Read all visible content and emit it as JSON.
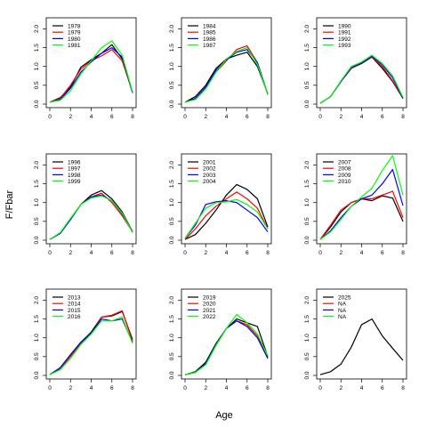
{
  "chart_data": {
    "type": "line",
    "ylabel": "F/Fbar",
    "xlabel": "Age",
    "x": [
      0,
      1,
      2,
      3,
      4,
      5,
      6,
      7,
      8
    ],
    "xticks": [
      0,
      2,
      4,
      6,
      8
    ],
    "yticks": [
      0.0,
      0.5,
      1.0,
      1.5,
      2.0
    ],
    "ylim": [
      0,
      2.2
    ],
    "xlim": [
      0,
      8
    ],
    "colors": [
      "#000000",
      "#ff0000",
      "#0000ff",
      "#00ff00"
    ],
    "legend_position": "top-left",
    "panels": [
      {
        "series": [
          {
            "name": "1978",
            "color": "#000000",
            "values": [
              0.05,
              0.17,
              0.45,
              0.98,
              1.18,
              1.35,
              1.58,
              1.2,
              0.3
            ]
          },
          {
            "name": "1979",
            "color": "#ff0000",
            "values": [
              0.05,
              0.15,
              0.5,
              0.93,
              1.15,
              1.28,
              1.45,
              1.15,
              0.32
            ]
          },
          {
            "name": "1980",
            "color": "#0000ff",
            "values": [
              0.05,
              0.12,
              0.42,
              0.85,
              1.12,
              1.35,
              1.5,
              1.25,
              0.3
            ]
          },
          {
            "name": "1981",
            "color": "#00ff00",
            "values": [
              0.05,
              0.1,
              0.35,
              0.8,
              1.15,
              1.5,
              1.68,
              1.3,
              0.32
            ]
          }
        ]
      },
      {
        "series": [
          {
            "name": "1984",
            "color": "#000000",
            "values": [
              0.05,
              0.2,
              0.5,
              0.95,
              1.2,
              1.3,
              1.38,
              1.0,
              0.28
            ]
          },
          {
            "name": "1985",
            "color": "#ff0000",
            "values": [
              0.05,
              0.15,
              0.45,
              0.85,
              1.15,
              1.45,
              1.55,
              1.1,
              0.25
            ]
          },
          {
            "name": "1986",
            "color": "#0000ff",
            "values": [
              0.05,
              0.15,
              0.45,
              0.9,
              1.18,
              1.38,
              1.45,
              1.1,
              0.27
            ]
          },
          {
            "name": "1987",
            "color": "#00ff00",
            "values": [
              0.05,
              0.12,
              0.4,
              0.85,
              1.2,
              1.4,
              1.5,
              1.05,
              0.27
            ]
          }
        ]
      },
      {
        "series": [
          {
            "name": "1990",
            "color": "#000000",
            "values": [
              0.02,
              0.2,
              0.6,
              0.95,
              1.08,
              1.25,
              0.95,
              0.6,
              0.15
            ]
          },
          {
            "name": "1991",
            "color": "#ff0000",
            "values": [
              0.02,
              0.2,
              0.6,
              0.95,
              1.1,
              1.25,
              1.0,
              0.62,
              0.15
            ]
          },
          {
            "name": "1992",
            "color": "#0000ff",
            "values": [
              0.02,
              0.2,
              0.6,
              0.97,
              1.1,
              1.27,
              1.05,
              0.7,
              0.15
            ]
          },
          {
            "name": "1993",
            "color": "#00ff00",
            "values": [
              0.02,
              0.2,
              0.62,
              1.0,
              1.12,
              1.3,
              1.08,
              0.75,
              0.18
            ]
          }
        ]
      },
      {
        "series": [
          {
            "name": "1996",
            "color": "#000000",
            "values": [
              0.02,
              0.18,
              0.55,
              0.95,
              1.2,
              1.32,
              1.1,
              0.75,
              0.22
            ]
          },
          {
            "name": "1997",
            "color": "#ff0000",
            "values": [
              0.02,
              0.18,
              0.55,
              0.95,
              1.15,
              1.25,
              1.0,
              0.65,
              0.22
            ]
          },
          {
            "name": "1998",
            "color": "#0000ff",
            "values": [
              0.02,
              0.18,
              0.55,
              0.95,
              1.15,
              1.2,
              1.05,
              0.7,
              0.22
            ]
          },
          {
            "name": "1999",
            "color": "#00ff00",
            "values": [
              0.02,
              0.2,
              0.58,
              0.95,
              1.12,
              1.18,
              1.05,
              0.72,
              0.2
            ]
          }
        ]
      },
      {
        "series": [
          {
            "name": "2001",
            "color": "#000000",
            "values": [
              0.02,
              0.15,
              0.45,
              0.8,
              1.2,
              1.48,
              1.35,
              1.1,
              0.35
            ]
          },
          {
            "name": "2002",
            "color": "#ff0000",
            "values": [
              0.02,
              0.3,
              0.65,
              0.9,
              1.1,
              1.28,
              1.1,
              0.85,
              0.3
            ]
          },
          {
            "name": "2003",
            "color": "#0000ff",
            "values": [
              0.05,
              0.4,
              0.95,
              1.02,
              1.05,
              1.0,
              0.8,
              0.6,
              0.22
            ]
          },
          {
            "name": "2004",
            "color": "#00ff00",
            "values": [
              0.05,
              0.45,
              0.85,
              1.0,
              1.02,
              1.08,
              0.95,
              0.75,
              0.3
            ]
          }
        ]
      },
      {
        "series": [
          {
            "name": "2007",
            "color": "#000000",
            "values": [
              0.02,
              0.35,
              0.75,
              1.0,
              1.1,
              1.05,
              1.18,
              1.12,
              0.5
            ]
          },
          {
            "name": "2008",
            "color": "#ff0000",
            "values": [
              0.02,
              0.4,
              0.8,
              1.0,
              1.1,
              1.1,
              1.2,
              1.3,
              0.6
            ]
          },
          {
            "name": "2009",
            "color": "#0000ff",
            "values": [
              0.02,
              0.25,
              0.6,
              0.9,
              1.1,
              1.2,
              1.5,
              1.88,
              0.92
            ]
          },
          {
            "name": "2010",
            "color": "#00ff00",
            "values": [
              0.02,
              0.22,
              0.55,
              0.9,
              1.15,
              1.38,
              1.85,
              2.25,
              1.2
            ]
          }
        ]
      },
      {
        "series": [
          {
            "name": "2013",
            "color": "#000000",
            "values": [
              0.02,
              0.2,
              0.55,
              0.88,
              1.15,
              1.55,
              1.58,
              1.7,
              0.95
            ]
          },
          {
            "name": "2014",
            "color": "#ff0000",
            "values": [
              0.02,
              0.18,
              0.5,
              0.85,
              1.1,
              1.55,
              1.6,
              1.72,
              0.9
            ]
          },
          {
            "name": "2015",
            "color": "#0000ff",
            "values": [
              0.02,
              0.2,
              0.55,
              0.88,
              1.12,
              1.5,
              1.45,
              1.5,
              0.88
            ]
          },
          {
            "name": "2016",
            "color": "#00ff00",
            "values": [
              0.02,
              0.15,
              0.45,
              0.82,
              1.1,
              1.45,
              1.45,
              1.55,
              0.85
            ]
          }
        ]
      },
      {
        "series": [
          {
            "name": "2019",
            "color": "#000000",
            "values": [
              0.02,
              0.1,
              0.35,
              0.85,
              1.25,
              1.5,
              1.4,
              1.3,
              0.5
            ]
          },
          {
            "name": "2020",
            "color": "#ff0000",
            "values": [
              0.02,
              0.08,
              0.3,
              0.8,
              1.25,
              1.45,
              1.35,
              1.05,
              0.45
            ]
          },
          {
            "name": "2021",
            "color": "#0000ff",
            "values": [
              0.02,
              0.08,
              0.32,
              0.82,
              1.25,
              1.45,
              1.3,
              1.0,
              0.45
            ]
          },
          {
            "name": "2022",
            "color": "#00ff00",
            "values": [
              0.02,
              0.08,
              0.28,
              0.8,
              1.25,
              1.62,
              1.4,
              1.1,
              0.52
            ]
          }
        ]
      },
      {
        "series": [
          {
            "name": "2025",
            "color": "#000000",
            "values": [
              0.02,
              0.1,
              0.3,
              0.75,
              1.35,
              1.5,
              1.05,
              0.72,
              0.4
            ]
          },
          {
            "name": "NA",
            "color": "#ff0000",
            "values": []
          },
          {
            "name": "NA",
            "color": "#0000ff",
            "values": []
          },
          {
            "name": "NA",
            "color": "#00ff00",
            "values": []
          }
        ]
      }
    ]
  }
}
